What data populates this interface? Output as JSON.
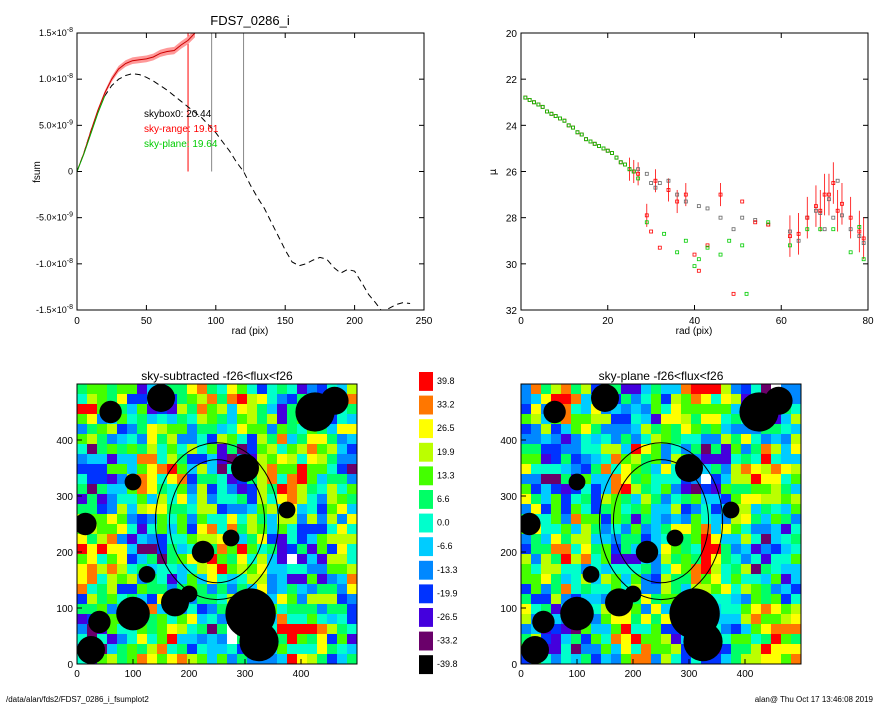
{
  "page_title": "FDS7_0286_i",
  "footer": {
    "path": "/data/alan/fds2/FDS7_0286_i_fsumplot2",
    "user_time": "alan@  Thu Oct 17 13:46:08 2019"
  },
  "chart_data": [
    {
      "type": "line",
      "title": "FDS7_0286_i",
      "xlabel": "rad (pix)",
      "ylabel": "fsum",
      "xlim": [
        0,
        250
      ],
      "ylim": [
        -1.5e-08,
        1.5e-08
      ],
      "x_ticks": [
        0,
        50,
        100,
        150,
        200,
        250
      ],
      "y_ticks": [
        {
          "value": 1.5e-08,
          "label": "1.5×10^-8"
        },
        {
          "value": 1e-08,
          "label": "1.0×10^-8"
        },
        {
          "value": 5e-09,
          "label": "5.0×10^-9"
        },
        {
          "value": 0,
          "label": "0"
        },
        {
          "value": -5e-09,
          "label": "-5.0×10^-9"
        },
        {
          "value": -1e-08,
          "label": "-1.0×10^-8"
        },
        {
          "value": -1.5e-08,
          "label": "-1.5×10^-8"
        }
      ],
      "annotations": [
        {
          "text": "skybox0: 20.44",
          "color": "#000000"
        },
        {
          "text": "sky-range: 19.61",
          "color": "#ff0000"
        },
        {
          "text": "sky-plane: 19.64",
          "color": "#00cc00"
        }
      ],
      "vertical_markers": [
        {
          "x": 80,
          "color": "#ff0000"
        },
        {
          "x": 97,
          "color": "#888888"
        },
        {
          "x": 120,
          "color": "#888888"
        }
      ],
      "series": [
        {
          "style": "dashed",
          "color": "#000000",
          "x": [
            0,
            5,
            10,
            15,
            20,
            25,
            30,
            35,
            40,
            45,
            50,
            55,
            60,
            65,
            70,
            75,
            80,
            85,
            90,
            95,
            100,
            105,
            110,
            115,
            120,
            125,
            130,
            135,
            140,
            145,
            150,
            155,
            160,
            165,
            170,
            175,
            180,
            185,
            190,
            195,
            200,
            205,
            210,
            215,
            220,
            225,
            230,
            235,
            240
          ],
          "y": [
            0,
            2e-09,
            4.4e-09,
            6.5e-09,
            8.2e-09,
            9.3e-09,
            1e-08,
            1.04e-08,
            1.06e-08,
            1.05e-08,
            1.02e-08,
            9.8e-09,
            9.3e-09,
            8.8e-09,
            8.2e-09,
            7.6e-09,
            7e-09,
            6.4e-09,
            5.8e-09,
            5e-09,
            4.2e-09,
            3.2e-09,
            2.2e-09,
            1e-09,
            0,
            -1.5e-09,
            -2.8e-09,
            -4e-09,
            -5.5e-09,
            -7e-09,
            -8.5e-09,
            -9.8e-09,
            -1.02e-08,
            -1e-08,
            -9.6e-09,
            -9.3e-09,
            -9.5e-09,
            -1.04e-08,
            -1.1e-08,
            -1.06e-08,
            -1.08e-08,
            -1.2e-08,
            -1.33e-08,
            -1.42e-08,
            -1.52e-08,
            -1.48e-08,
            -1.44e-08,
            -1.42e-08,
            -1.43e-08
          ]
        },
        {
          "style": "solid",
          "color": "#cc0000",
          "band_color": "#ff9999",
          "x": [
            0,
            5,
            10,
            15,
            20,
            25,
            30,
            35,
            40,
            45,
            50,
            55,
            60,
            65,
            70,
            75,
            80,
            85
          ],
          "y": [
            0,
            2e-09,
            4.4e-09,
            6.6e-09,
            8.5e-09,
            1e-08,
            1.11e-08,
            1.17e-08,
            1.2e-08,
            1.21e-08,
            1.22e-08,
            1.24e-08,
            1.28e-08,
            1.3e-08,
            1.31e-08,
            1.37e-08,
            1.42e-08,
            1.5e-08
          ]
        },
        {
          "style": "solid",
          "color": "#00aa00",
          "x": [
            0,
            5,
            10,
            15,
            20
          ],
          "y": [
            0,
            1.9e-09,
            4.1e-09,
            6.3e-09,
            8.2e-09
          ]
        }
      ]
    },
    {
      "type": "scatter",
      "xlabel": "rad (pix)",
      "ylabel": "μ",
      "xlim": [
        0,
        80
      ],
      "ylim": [
        32,
        20
      ],
      "x_ticks": [
        0,
        20,
        40,
        60,
        80
      ],
      "y_ticks": [
        20,
        22,
        24,
        26,
        28,
        30,
        32
      ],
      "series": [
        {
          "marker": "square-outline",
          "color": "#666666",
          "x": [
            1,
            2,
            3,
            4,
            5,
            6,
            7,
            8,
            9,
            10,
            11,
            12,
            13,
            14,
            15,
            16,
            17,
            18,
            19,
            20,
            21,
            22,
            23,
            24,
            25,
            26,
            27,
            29,
            30,
            31,
            32,
            34,
            36,
            38,
            41,
            43,
            46,
            49,
            51,
            54,
            57,
            62,
            64,
            66,
            68,
            69,
            70,
            71,
            72,
            73,
            74,
            76,
            78,
            79
          ],
          "y": [
            22.8,
            22.9,
            23.0,
            23.1,
            23.2,
            23.4,
            23.5,
            23.6,
            23.7,
            23.8,
            24.0,
            24.1,
            24.3,
            24.4,
            24.6,
            24.7,
            24.8,
            24.9,
            25.0,
            25.1,
            25.2,
            25.4,
            25.6,
            25.7,
            25.9,
            26.0,
            25.9,
            26.1,
            26.5,
            26.7,
            26.5,
            26.4,
            27.0,
            27.3,
            27.5,
            27.6,
            28.0,
            28.5,
            28.0,
            28.1,
            28.3,
            28.6,
            29.0,
            28.0,
            27.7,
            27.8,
            28.5,
            27.2,
            28.0,
            26.4,
            27.9,
            28.5,
            28.8,
            29.1
          ]
        },
        {
          "marker": "square-outline",
          "color": "#ff0000",
          "x": [
            1,
            2,
            3,
            4,
            5,
            6,
            7,
            8,
            9,
            10,
            11,
            12,
            13,
            14,
            15,
            16,
            17,
            18,
            19,
            20,
            21,
            22,
            23,
            24,
            25,
            26,
            27,
            29,
            30,
            31,
            32,
            34,
            36,
            38,
            40,
            41,
            43,
            46,
            49,
            51,
            54,
            57,
            62,
            64,
            66,
            68,
            69,
            70,
            71,
            72,
            73,
            74,
            76,
            78,
            79
          ],
          "y": [
            22.8,
            22.9,
            23.0,
            23.1,
            23.2,
            23.4,
            23.5,
            23.6,
            23.7,
            23.8,
            24.0,
            24.1,
            24.3,
            24.4,
            24.6,
            24.7,
            24.8,
            24.9,
            25.0,
            25.1,
            25.2,
            25.4,
            25.6,
            25.7,
            25.9,
            26.0,
            26.1,
            27.9,
            28.6,
            26.4,
            29.3,
            26.8,
            27.3,
            27.0,
            29.6,
            30.3,
            29.2,
            27.0,
            31.3,
            27.3,
            28.2,
            28.3,
            28.8,
            28.7,
            28.0,
            27.5,
            27.7,
            27.0,
            27.0,
            26.5,
            27.7,
            27.4,
            28.0,
            28.6,
            28.9
          ]
        },
        {
          "marker": "square-outline",
          "color": "#00cc00",
          "x": [
            1,
            2,
            3,
            4,
            5,
            6,
            7,
            8,
            9,
            10,
            11,
            12,
            13,
            14,
            15,
            16,
            17,
            18,
            19,
            20,
            21,
            22,
            23,
            24,
            25,
            26,
            27,
            29,
            33,
            36,
            38,
            40,
            41,
            43,
            46,
            48,
            51,
            52,
            57,
            62,
            66,
            69,
            72,
            76,
            78,
            79
          ],
          "y": [
            22.8,
            22.9,
            23.0,
            23.1,
            23.2,
            23.4,
            23.5,
            23.6,
            23.7,
            23.8,
            24.0,
            24.1,
            24.3,
            24.4,
            24.6,
            24.7,
            24.8,
            24.9,
            25.0,
            25.1,
            25.2,
            25.4,
            25.6,
            25.7,
            25.9,
            26.0,
            26.3,
            28.2,
            28.7,
            29.5,
            29.0,
            30.1,
            29.8,
            29.3,
            29.6,
            29.0,
            29.2,
            31.3,
            28.2,
            29.2,
            28.5,
            28.5,
            28.5,
            29.5,
            28.4,
            29.8
          ]
        }
      ]
    },
    {
      "type": "heatmap",
      "title": "sky-subtracted -f26<flux<f26",
      "xlim": [
        0,
        500
      ],
      "ylim": [
        0,
        500
      ],
      "x_ticks": [
        0,
        100,
        200,
        300,
        400
      ],
      "y_ticks": [
        0,
        100,
        200,
        300,
        400
      ]
    },
    {
      "type": "heatmap",
      "title": "sky-plane -f26<flux<f26",
      "xlim": [
        0,
        500
      ],
      "ylim": [
        0,
        500
      ],
      "x_ticks": [
        0,
        100,
        200,
        300,
        400
      ],
      "y_ticks": [
        0,
        100,
        200,
        300,
        400
      ]
    },
    {
      "type": "table",
      "role": "colorbar",
      "labels": [
        "39.8",
        "33.2",
        "26.5",
        "19.9",
        "13.3",
        "6.6",
        "0.0",
        "-6.6",
        "-13.3",
        "-19.9",
        "-26.5",
        "-33.2",
        "-39.8"
      ],
      "colors": [
        "#ff0000",
        "#ff7700",
        "#ffff00",
        "#bbff00",
        "#44ff00",
        "#00ff66",
        "#00ffcc",
        "#00ccff",
        "#0088ff",
        "#0033ff",
        "#4400dd",
        "#6a006a",
        "#000000"
      ]
    }
  ]
}
